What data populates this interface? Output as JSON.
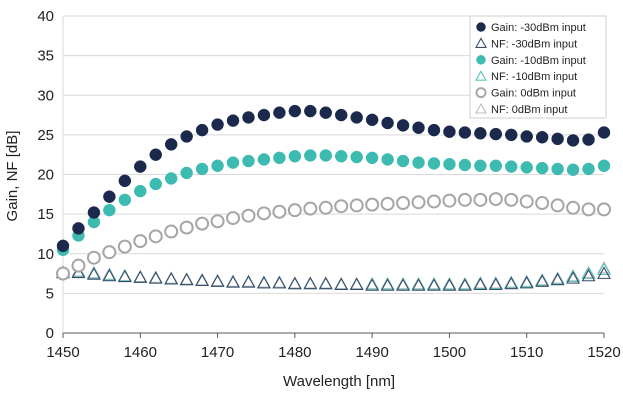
{
  "chart_data": {
    "type": "scatter",
    "xlabel": "Wavelength [nm]",
    "ylabel": "Gain, NF [dB]",
    "xlim": [
      1450,
      1520
    ],
    "ylim": [
      0,
      40
    ],
    "xticks": [
      1450,
      1460,
      1470,
      1480,
      1490,
      1500,
      1510,
      1520
    ],
    "yticks": [
      0,
      5,
      10,
      15,
      20,
      25,
      30,
      35,
      40
    ],
    "grid": true,
    "legend_position": "top-right",
    "x": [
      1450,
      1452,
      1454,
      1456,
      1458,
      1460,
      1462,
      1464,
      1466,
      1468,
      1470,
      1472,
      1474,
      1476,
      1478,
      1480,
      1482,
      1484,
      1486,
      1488,
      1490,
      1492,
      1494,
      1496,
      1498,
      1500,
      1502,
      1504,
      1506,
      1508,
      1510,
      1512,
      1514,
      1516,
      1518,
      1520
    ],
    "series": [
      {
        "name": "Gain: -30dBm input",
        "marker": "filled-circle",
        "color": "#1b2a4c",
        "values": [
          11.0,
          13.2,
          15.2,
          17.2,
          19.2,
          21.0,
          22.5,
          23.8,
          24.8,
          25.6,
          26.3,
          26.8,
          27.2,
          27.5,
          27.8,
          28.0,
          28.0,
          27.8,
          27.5,
          27.2,
          26.9,
          26.5,
          26.2,
          25.9,
          25.6,
          25.4,
          25.3,
          25.2,
          25.1,
          25.0,
          24.8,
          24.7,
          24.5,
          24.3,
          24.4,
          25.3
        ]
      },
      {
        "name": "NF: -30dBm input",
        "marker": "open-triangle",
        "color": "#3a4a6b",
        "values": [
          7.6,
          7.6,
          7.4,
          7.2,
          7.1,
          7.0,
          6.9,
          6.8,
          6.7,
          6.6,
          6.5,
          6.4,
          6.4,
          6.3,
          6.3,
          6.2,
          6.2,
          6.2,
          6.1,
          6.1,
          6.0,
          6.0,
          6.0,
          6.0,
          6.0,
          6.0,
          6.0,
          6.1,
          6.1,
          6.2,
          6.3,
          6.5,
          6.7,
          6.9,
          7.2,
          7.5
        ]
      },
      {
        "name": "Gain: -10dBm input",
        "marker": "filled-circle",
        "color": "#3dbbb0",
        "values": [
          10.5,
          12.3,
          14.0,
          15.5,
          16.8,
          17.9,
          18.8,
          19.5,
          20.2,
          20.7,
          21.1,
          21.5,
          21.7,
          21.9,
          22.1,
          22.3,
          22.4,
          22.4,
          22.3,
          22.2,
          22.1,
          21.9,
          21.7,
          21.5,
          21.4,
          21.3,
          21.2,
          21.1,
          21.1,
          21.0,
          20.9,
          20.8,
          20.7,
          20.6,
          20.7,
          21.1
        ]
      },
      {
        "name": "NF: -10dBm input",
        "marker": "open-triangle",
        "color": "#57c7bd",
        "values": [
          7.6,
          7.7,
          7.5,
          7.3,
          7.2,
          7.0,
          6.9,
          6.8,
          6.7,
          6.6,
          6.5,
          6.4,
          6.4,
          6.3,
          6.3,
          6.2,
          6.2,
          6.2,
          6.1,
          6.1,
          6.1,
          6.1,
          6.1,
          6.1,
          6.1,
          6.1,
          6.1,
          6.2,
          6.2,
          6.3,
          6.4,
          6.6,
          6.8,
          7.1,
          7.5,
          8.0
        ]
      },
      {
        "name": "Gain: 0dBm input",
        "marker": "open-circle",
        "color": "#a6a6a6",
        "values": [
          7.5,
          8.5,
          9.5,
          10.2,
          10.9,
          11.6,
          12.2,
          12.8,
          13.3,
          13.8,
          14.1,
          14.5,
          14.8,
          15.1,
          15.3,
          15.5,
          15.7,
          15.8,
          16.0,
          16.1,
          16.2,
          16.3,
          16.4,
          16.5,
          16.6,
          16.7,
          16.8,
          16.8,
          16.9,
          16.8,
          16.6,
          16.4,
          16.1,
          15.8,
          15.6,
          15.6
        ]
      },
      {
        "name": "NF: 0dBm input",
        "marker": "open-triangle",
        "color": "#bdbdbd",
        "values": [
          7.6,
          7.8,
          7.6,
          7.4,
          7.2,
          7.1,
          7.0,
          6.9,
          6.8,
          6.7,
          6.6,
          6.5,
          6.5,
          6.4,
          6.4,
          6.3,
          6.3,
          6.3,
          6.2,
          6.2,
          6.2,
          6.2,
          6.2,
          6.2,
          6.2,
          6.2,
          6.2,
          6.3,
          6.3,
          6.4,
          6.5,
          6.7,
          6.9,
          7.2,
          7.6,
          8.2
        ]
      }
    ]
  }
}
